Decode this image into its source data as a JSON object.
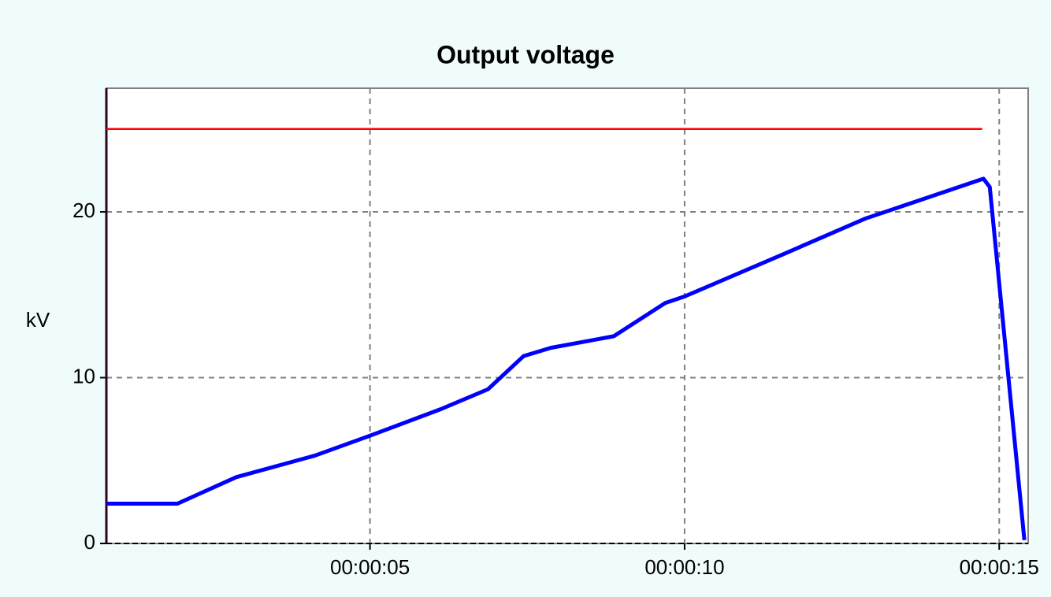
{
  "chart_data": {
    "type": "line",
    "title": "Output voltage",
    "y_label": "kV",
    "xlim": [
      0.81,
      15.46
    ],
    "ylim": [
      0,
      27.46
    ],
    "xticks": [
      {
        "value": 5,
        "label": "00:00:05"
      },
      {
        "value": 10,
        "label": "00:00:10"
      },
      {
        "value": 15,
        "label": "00:00:15"
      }
    ],
    "yticks": [
      0,
      10,
      20
    ],
    "grid": true,
    "series": [
      {
        "color": "#0000ff",
        "x": [
          0.81,
          1.94,
          2.875,
          4.125,
          5.0,
          6.125,
          6.875,
          7.44,
          7.875,
          8.875,
          9.69,
          10.0,
          11.6,
          12.875,
          14.75,
          14.85,
          15.4
        ],
        "values": [
          2.4,
          2.4,
          4.0,
          5.3,
          6.5,
          8.1,
          9.3,
          11.3,
          11.8,
          12.5,
          14.5,
          14.9,
          17.5,
          19.6,
          22.0,
          21.5,
          0.2
        ]
      },
      {
        "color": "#ff0000",
        "x": [
          0.81,
          14.73
        ],
        "values": [
          25,
          25
        ]
      }
    ]
  }
}
